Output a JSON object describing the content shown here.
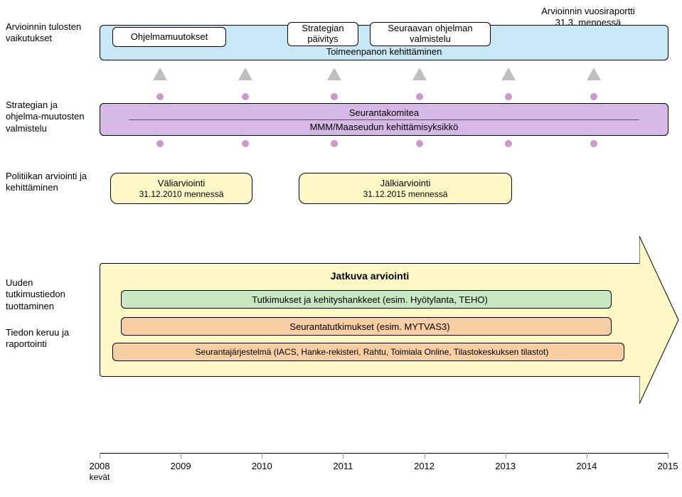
{
  "colors": {
    "row1_bg": "#c7e8f4",
    "row2_bg": "#d7b9e8",
    "row3_bg": "#fff9c7",
    "row3_bg_alt": "#fff9c7",
    "arrow_bg": "#fff9c7",
    "bar_green": "#c8e8c2",
    "bar_orange": "#f7cfa3",
    "white": "#ffffff",
    "tri_gray": "#bfbfbf",
    "dot_purple": "#cc99cc",
    "axis": "#000000"
  },
  "row1": {
    "label": "Arvioinnin tulosten vaikutukset",
    "bar_title": "Toimeenpanon kehittäminen",
    "box1": "Ohjelmamuutokset",
    "box2_l1": "Strategian",
    "box2_l2": "päivitys",
    "box3_l1": "Seuraavan ohjelman",
    "box3_l2": "valmistelu",
    "annual_l1": "Arvioinnin vuosiraportti",
    "annual_l2": "31.3. mennessä"
  },
  "row2": {
    "label": "Strategian ja ohjelma-muutosten valmistelu",
    "line1": "Seurantakomitea",
    "line2": "MMM/Maaseudun kehittämisyksikkö"
  },
  "row3": {
    "label": "Politiikan arviointi ja kehittäminen",
    "eval1_l1": "Väliarviointi",
    "eval1_l2": "31.12.2010 mennessä",
    "eval2_l1": "Jälkiarviointi",
    "eval2_l2": "31.12.2015 mennessä"
  },
  "row4": {
    "label1": "Uuden tutkimustiedon tuottaminen",
    "label2": "Tiedon keruu ja raportointi",
    "title": "Jatkuva arviointi",
    "bar1": "Tutkimukset ja kehityshankkeet (esim. Hyötylanta, TEHO)",
    "bar2": "Seurantatutkimukset (esim. MYTVAS3)",
    "bar3": "Seurantajärjestelmä (IACS, Hanke-rekisteri, Rahtu, Toimiala Online, Tilastokeskuksen tilastot)"
  },
  "timeline": {
    "years": [
      "2008",
      "2009",
      "2010",
      "2011",
      "2012",
      "2013",
      "2014",
      "2015"
    ],
    "sub": "kevät"
  }
}
